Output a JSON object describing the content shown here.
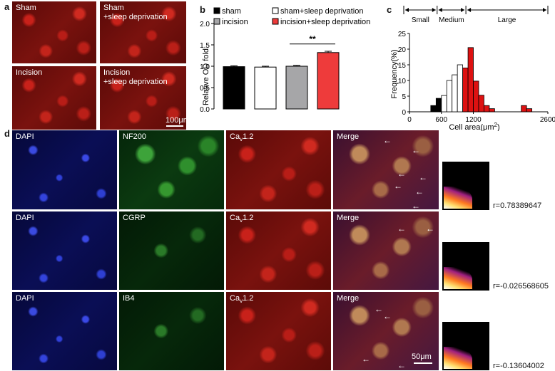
{
  "panel_letters": {
    "a": "a",
    "b": "b",
    "c": "c",
    "d": "d"
  },
  "panel_a": {
    "tiles": [
      "Sham",
      "Sham\n+sleep deprivation",
      "Incision",
      "Incision\n+sleep deprivation"
    ],
    "scale_bar": "100μm"
  },
  "panel_d": {
    "rows": [
      {
        "labels": [
          "DAPI",
          "NF200",
          "Ca",
          "1.2",
          "Merge"
        ],
        "r": "r=0.78389647"
      },
      {
        "labels": [
          "DAPI",
          "CGRP",
          "Ca",
          "1.2",
          "Merge"
        ],
        "r": "r=-0.026568605"
      },
      {
        "labels": [
          "DAPI",
          "IB4",
          "Ca",
          "1.2",
          "Merge"
        ],
        "r": "r=-0.13604002"
      }
    ],
    "scale_bar": "50μm",
    "cav_sub": "v"
  },
  "chart_data": [
    {
      "type": "bar",
      "categories": [
        "sham",
        "sham+sleep deprivation",
        "incision",
        "incision+sleep deprivation"
      ],
      "values": [
        0.99,
        0.98,
        1.0,
        1.32
      ],
      "errors": [
        0.02,
        0.02,
        0.02,
        0.03
      ],
      "colors": [
        "#000000",
        "#ffffff",
        "#a6a6a8",
        "#ee3b3b"
      ],
      "ylabel": "Relative OD fold",
      "ylim": [
        0,
        2.0
      ],
      "yticks": [
        "0.0",
        "0.5",
        "1.0",
        "1.5",
        "2.0"
      ],
      "significance": "**",
      "legend": [
        "sham",
        "sham+sleep deprivation",
        "incision",
        "incision+sleep deprivation"
      ]
    },
    {
      "type": "bar",
      "ylabel": "Frequency(%)",
      "xlabel": "Cell area(μm",
      "xlabel_sup": "2",
      "xlabel_end": ")",
      "ylim": [
        0,
        25
      ],
      "xlim": [
        0,
        2600
      ],
      "yticks": [
        "0",
        "5",
        "10",
        "15",
        "20",
        "25"
      ],
      "xticks": [
        "0",
        "600",
        "1200",
        "2600"
      ],
      "xtick_values": [
        0,
        600,
        1200,
        2600
      ],
      "bin_width": 100,
      "bins": [
        {
          "x": 400,
          "value": 2.0,
          "group": "small"
        },
        {
          "x": 500,
          "value": 4.3,
          "group": "small"
        },
        {
          "x": 600,
          "value": 5.2,
          "group": "medium"
        },
        {
          "x": 700,
          "value": 10.0,
          "group": "medium"
        },
        {
          "x": 800,
          "value": 11.8,
          "group": "medium"
        },
        {
          "x": 900,
          "value": 15.0,
          "group": "medium"
        },
        {
          "x": 1000,
          "value": 14.0,
          "group": "large"
        },
        {
          "x": 1100,
          "value": 20.5,
          "group": "large"
        },
        {
          "x": 1200,
          "value": 9.8,
          "group": "large"
        },
        {
          "x": 1300,
          "value": 5.3,
          "group": "large"
        },
        {
          "x": 1400,
          "value": 2.0,
          "group": "large"
        },
        {
          "x": 1500,
          "value": 1.0,
          "group": "large"
        },
        {
          "x": 2100,
          "value": 2.0,
          "group": "large"
        },
        {
          "x": 2200,
          "value": 1.0,
          "group": "large"
        }
      ],
      "group_colors": {
        "small": "#000000",
        "medium": "#ffffff",
        "large": "#dd1111"
      },
      "size_ranges": [
        "Small",
        "Medium",
        "Large"
      ]
    }
  ]
}
